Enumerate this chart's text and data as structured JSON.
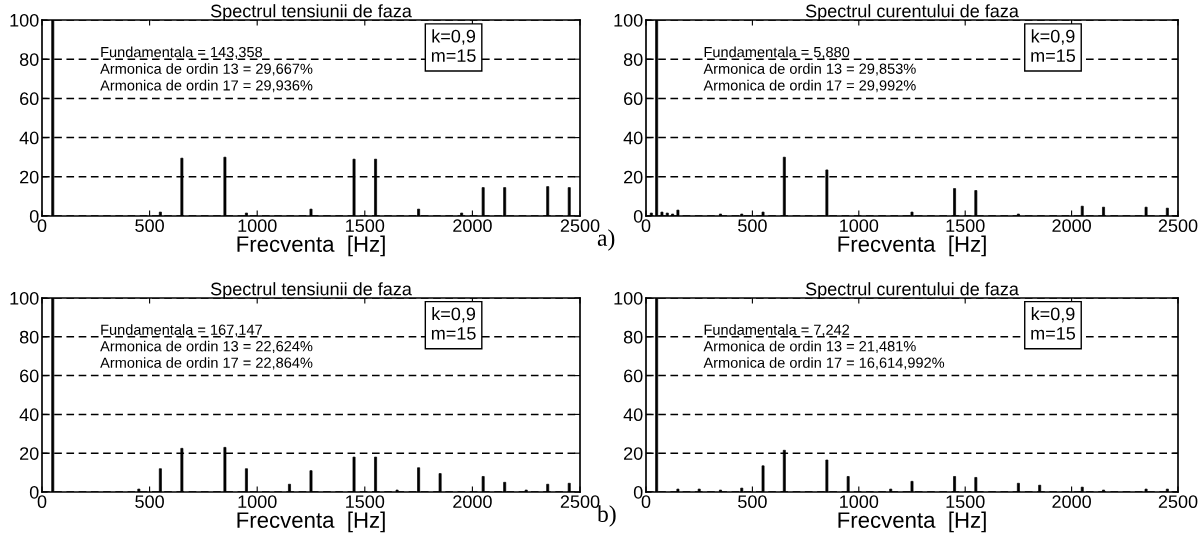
{
  "chart_data": [
    {
      "type": "bar",
      "title": "Spectrul tensiunii de faza",
      "xlabel": "Frecventa  [Hz]",
      "x": [
        50,
        550,
        650,
        850,
        950,
        1250,
        1450,
        1550,
        1750,
        1950,
        2050,
        2150,
        2350,
        2450
      ],
      "values": [
        100,
        2,
        29.5,
        30,
        1.5,
        3.5,
        29,
        29,
        3.5,
        1.5,
        14.5,
        14.5,
        15,
        14.5
      ],
      "color": "#000000",
      "xlim": [
        0,
        2500
      ],
      "xticks": [
        0,
        500,
        1000,
        1500,
        2000,
        2500
      ],
      "ylim": [
        0,
        100
      ],
      "yticks": [
        0,
        20,
        40,
        60,
        80,
        100
      ],
      "grid": "y",
      "annotations": [
        "Fundamentala = 143,358",
        "Armonica de ordin 13 = 29,667%",
        "Armonica de ordin 17 = 29,936%",
        "k=0,9\nm=15"
      ]
    },
    {
      "type": "bar",
      "title": "Spectrul curentului de faza",
      "xlabel": "Frecventa  [Hz]",
      "x": [
        25,
        50,
        75,
        100,
        125,
        150,
        350,
        450,
        550,
        650,
        850,
        1250,
        1450,
        1550,
        1750,
        2050,
        2150,
        2350,
        2450
      ],
      "values": [
        1.5,
        100,
        2,
        1.5,
        1,
        3,
        1,
        1,
        2,
        30,
        23.5,
        2,
        14,
        13,
        1,
        5,
        4.5,
        4.5,
        4
      ],
      "color": "#000000",
      "xlim": [
        0,
        2500
      ],
      "xticks": [
        0,
        500,
        1000,
        1500,
        2000,
        2500
      ],
      "ylim": [
        0,
        100
      ],
      "yticks": [
        0,
        20,
        40,
        60,
        80,
        100
      ],
      "grid": "y",
      "annotations": [
        "Fundamentala = 5,880",
        "Armonica de ordin 13 = 29,853%",
        "Armonica de ordin 17 = 29,992%",
        "k=0,9\nm=15",
        "a)"
      ]
    },
    {
      "type": "bar",
      "title": "Spectrul tensiunii de faza",
      "xlabel": "Frecventa  [Hz]",
      "x": [
        50,
        450,
        550,
        650,
        850,
        950,
        1150,
        1250,
        1450,
        1550,
        1650,
        1750,
        1850,
        2050,
        2150,
        2250,
        2350,
        2450
      ],
      "values": [
        100,
        1.5,
        12,
        22.5,
        23,
        12,
        4,
        11,
        18,
        18,
        1,
        12.5,
        9.5,
        8,
        5,
        1,
        4,
        4.5
      ],
      "color": "#000000",
      "xlim": [
        0,
        2500
      ],
      "xticks": [
        0,
        500,
        1000,
        1500,
        2000,
        2500
      ],
      "ylim": [
        0,
        100
      ],
      "yticks": [
        0,
        20,
        40,
        60,
        80,
        100
      ],
      "grid": "y",
      "annotations": [
        "Fundamentala = 167,147",
        "Armonica de ordin 13 = 22,624%",
        "Armonica de ordin 17 = 22,864%",
        "k=0,9\nm=15"
      ]
    },
    {
      "type": "bar",
      "title": "Spectrul curentului de faza",
      "xlabel": "Frecventa  [Hz]",
      "x": [
        50,
        150,
        250,
        350,
        450,
        550,
        650,
        850,
        950,
        1150,
        1250,
        1450,
        1550,
        1750,
        1850,
        2050,
        2150,
        2350,
        2450
      ],
      "values": [
        100,
        1.5,
        1.5,
        1,
        2,
        13.5,
        21.5,
        16.5,
        8,
        1.5,
        5.5,
        8,
        7.5,
        4.5,
        3.5,
        2.5,
        1,
        1.5,
        1.5
      ],
      "color": "#000000",
      "xlim": [
        0,
        2500
      ],
      "xticks": [
        0,
        500,
        1000,
        1500,
        2000,
        2500
      ],
      "ylim": [
        0,
        100
      ],
      "yticks": [
        0,
        20,
        40,
        60,
        80,
        100
      ],
      "grid": "y",
      "annotations": [
        "Fundamentala = 7,242",
        "Armonica de ordin 13 = 21,481%",
        "Armonica de ordin 17 = 16,614,992%",
        "k=0,9\nm=15",
        "b)"
      ]
    }
  ]
}
